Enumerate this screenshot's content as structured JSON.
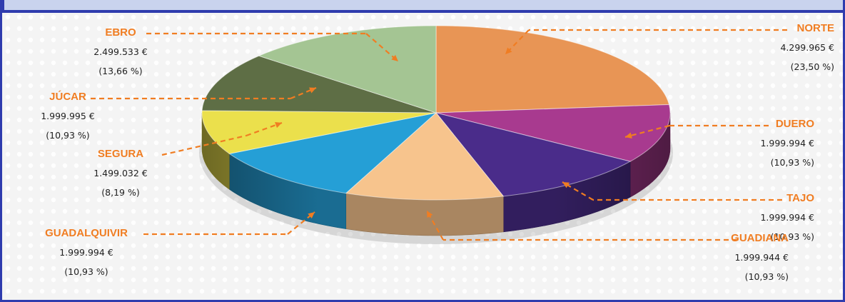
{
  "chart_data": {
    "type": "pie",
    "title": "",
    "slices": [
      {
        "name": "NORTE",
        "value": 4299965,
        "value_label": "4.299.965 €",
        "percent": 23.5,
        "percent_label": "(23,50 %)",
        "color": "#e89555"
      },
      {
        "name": "DUERO",
        "value": 1999994,
        "value_label": "1.999.994 €",
        "percent": 10.93,
        "percent_label": "(10,93 %)",
        "color": "#a83a8f"
      },
      {
        "name": "TAJO",
        "value": 1999994,
        "value_label": "1.999.994 €",
        "percent": 10.93,
        "percent_label": "(10,93 %)",
        "color": "#4a2c8a"
      },
      {
        "name": "GUADIANA",
        "value": 1999944,
        "value_label": "1.999.944 €",
        "percent": 10.93,
        "percent_label": "(10,93 %)",
        "color": "#f7c48d"
      },
      {
        "name": "GUADALQUIVIR",
        "value": 1999994,
        "value_label": "1.999.994 €",
        "percent": 10.93,
        "percent_label": "(10,93 %)",
        "color": "#259fd6"
      },
      {
        "name": "SEGURA",
        "value": 1499032,
        "value_label": "1.499.032 €",
        "percent": 8.19,
        "percent_label": "(8,19 %)",
        "color": "#ebe04c"
      },
      {
        "name": "JÚCAR",
        "value": 1999995,
        "value_label": "1.999.995 €",
        "percent": 10.93,
        "percent_label": "(10,93 %)",
        "color": "#5e6e45"
      },
      {
        "name": "EBRO",
        "value": 2499533,
        "value_label": "2.499.533 €",
        "percent": 13.66,
        "percent_label": "(13,66 %)",
        "color": "#a4c593"
      }
    ],
    "legend": "callout labels with dashed arrows around the pie"
  }
}
